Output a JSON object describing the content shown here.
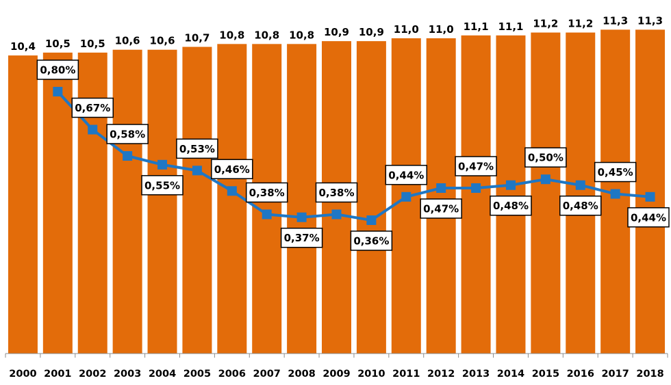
{
  "chart_data": {
    "type": "bar",
    "categories": [
      "2000",
      "2001",
      "2002",
      "2003",
      "2004",
      "2005",
      "2006",
      "2007",
      "2008",
      "2009",
      "2010",
      "2011",
      "2012",
      "2013",
      "2014",
      "2015",
      "2016",
      "2017",
      "2018"
    ],
    "series": [
      {
        "chart_type": "bar",
        "color": "#E36C0A",
        "values": [
          10.4,
          10.5,
          10.5,
          10.6,
          10.6,
          10.7,
          10.8,
          10.8,
          10.8,
          10.9,
          10.9,
          11.0,
          11.0,
          11.1,
          11.1,
          11.2,
          11.2,
          11.3,
          11.3
        ],
        "labels": [
          "10,4",
          "10,5",
          "10,5",
          "10,6",
          "10,6",
          "10,7",
          "10,8",
          "10,8",
          "10,8",
          "10,9",
          "10,9",
          "11,0",
          "11,0",
          "11,1",
          "11,1",
          "11,2",
          "11,2",
          "11,3",
          "11,3"
        ]
      },
      {
        "chart_type": "line",
        "color": "#1F77C4",
        "marker": "square",
        "values": [
          null,
          0.8,
          0.67,
          0.58,
          0.55,
          0.53,
          0.46,
          0.38,
          0.37,
          0.38,
          0.36,
          0.44,
          0.47,
          0.47,
          0.48,
          0.5,
          0.48,
          0.45,
          0.44
        ],
        "labels": [
          null,
          "0,80%",
          "0,67%",
          "0,58%",
          "0,55%",
          "0,53%",
          "0,46%",
          "0,38%",
          "0,37%",
          "0,38%",
          "0,36%",
          "0,44%",
          "0,47%",
          "0,47%",
          "0,48%",
          "0,50%",
          "0,48%",
          "0,45%",
          "0,44%"
        ],
        "label_positions": [
          null,
          "above",
          "above",
          "above",
          "below",
          "above",
          "above",
          "above",
          "below",
          "above",
          "below",
          "above",
          "below",
          "above",
          "below",
          "above",
          "below",
          "above",
          "below"
        ]
      }
    ],
    "bar_ylim": [
      0,
      11.5
    ],
    "line_ylim": [
      0.2,
      0.9
    ],
    "title": "",
    "xlabel": "",
    "ylabel": "",
    "grid": false,
    "legend": "none"
  }
}
